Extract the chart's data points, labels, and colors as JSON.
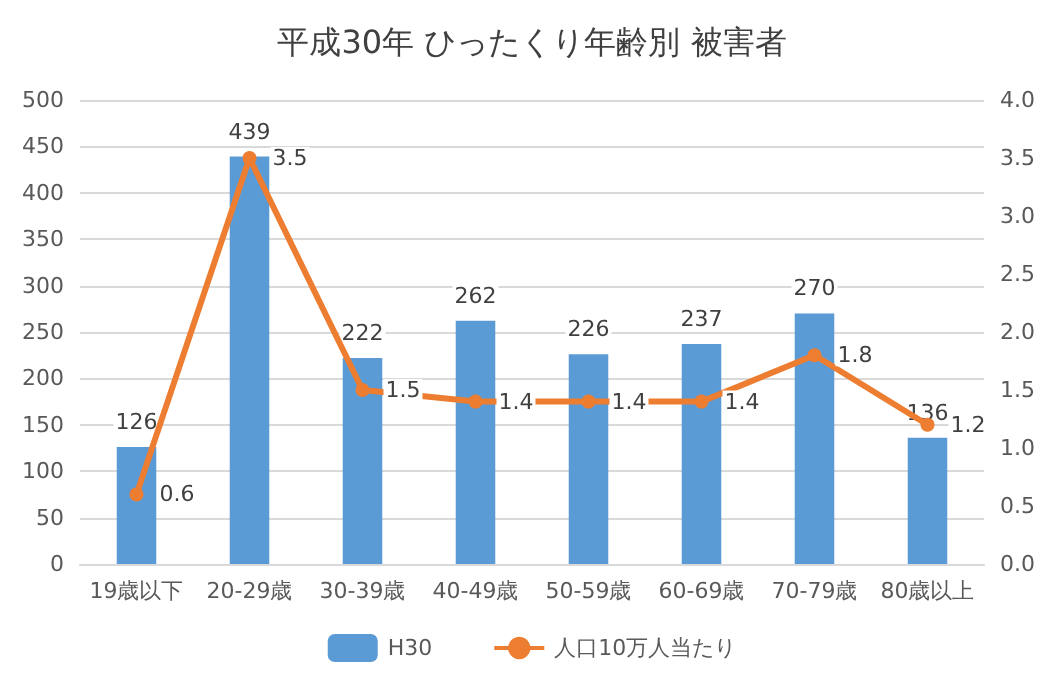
{
  "chart_data": {
    "type": "bar",
    "title": "平成30年 ひったくり年齢別 被害者",
    "categories": [
      "19歳以下",
      "20-29歳",
      "30-39歳",
      "40-49歳",
      "50-59歳",
      "60-69歳",
      "70-79歳",
      "80歳以上"
    ],
    "series": [
      {
        "name": "H30",
        "color": "#5b9bd5",
        "values": [
          126,
          439,
          222,
          262,
          226,
          237,
          270,
          136
        ]
      },
      {
        "name": "人口10万人当たり",
        "type": "line",
        "axis": "y2",
        "color": "#ed7d31",
        "marker": "circle",
        "values": [
          0.6,
          3.5,
          1.5,
          1.4,
          1.4,
          1.4,
          1.8,
          1.2
        ]
      }
    ],
    "ylim": [
      0,
      500
    ],
    "yticks": [
      0,
      50,
      100,
      150,
      200,
      250,
      300,
      350,
      400,
      450,
      500
    ],
    "y2lim": [
      0,
      4
    ],
    "y2ticks": [
      {
        "value": 0,
        "label": "0.0"
      },
      {
        "value": 0.5,
        "label": "0.5"
      },
      {
        "value": 1,
        "label": "1.0"
      },
      {
        "value": 1.5,
        "label": "1.5"
      },
      {
        "value": 2,
        "label": "2.0"
      },
      {
        "value": 2.5,
        "label": "2.5"
      },
      {
        "value": 3,
        "label": "3.0"
      },
      {
        "value": 3.5,
        "label": "3.5"
      },
      {
        "value": 4,
        "label": "4.0"
      }
    ],
    "grid": "y",
    "legend": "bottom",
    "data_labels": true
  }
}
